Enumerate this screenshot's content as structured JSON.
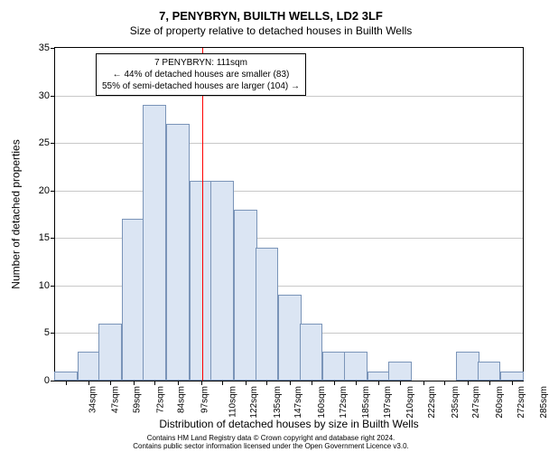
{
  "chart": {
    "type": "histogram",
    "supertitle": "7, PENYBRYN, BUILTH WELLS, LD2 3LF",
    "subtitle": "Size of property relative to detached houses in Builth Wells",
    "ylabel": "Number of detached properties",
    "xlabel": "Distribution of detached houses by size in Builth Wells",
    "ylim_max": 35,
    "ytick_step": 5,
    "yticks": [
      0,
      5,
      10,
      15,
      20,
      25,
      30,
      35
    ],
    "categories": [
      "34sqm",
      "47sqm",
      "59sqm",
      "72sqm",
      "84sqm",
      "97sqm",
      "110sqm",
      "122sqm",
      "135sqm",
      "147sqm",
      "160sqm",
      "172sqm",
      "185sqm",
      "197sqm",
      "210sqm",
      "222sqm",
      "235sqm",
      "247sqm",
      "260sqm",
      "272sqm",
      "285sqm"
    ],
    "values": [
      1,
      3,
      6,
      17,
      29,
      27,
      21,
      21,
      18,
      14,
      9,
      6,
      3,
      3,
      1,
      2,
      0,
      0,
      3,
      2,
      1
    ],
    "bar_fill": "#dbe5f3",
    "bar_edge": "#7a94b8",
    "grid_color": "#c8c8c8",
    "background_color": "#ffffff",
    "reference_line_value": 111,
    "reference_line_color": "#ff0000",
    "x_domain_min": 28,
    "x_domain_max": 291,
    "annotation": {
      "line1": "7 PENYBRYN: 111sqm",
      "line2": "← 44% of detached houses are smaller (83)",
      "line3": "55% of semi-detached houses are larger (104) →"
    }
  },
  "footer": {
    "line1": "Contains HM Land Registry data © Crown copyright and database right 2024.",
    "line2": "Contains public sector information licensed under the Open Government Licence v3.0."
  }
}
